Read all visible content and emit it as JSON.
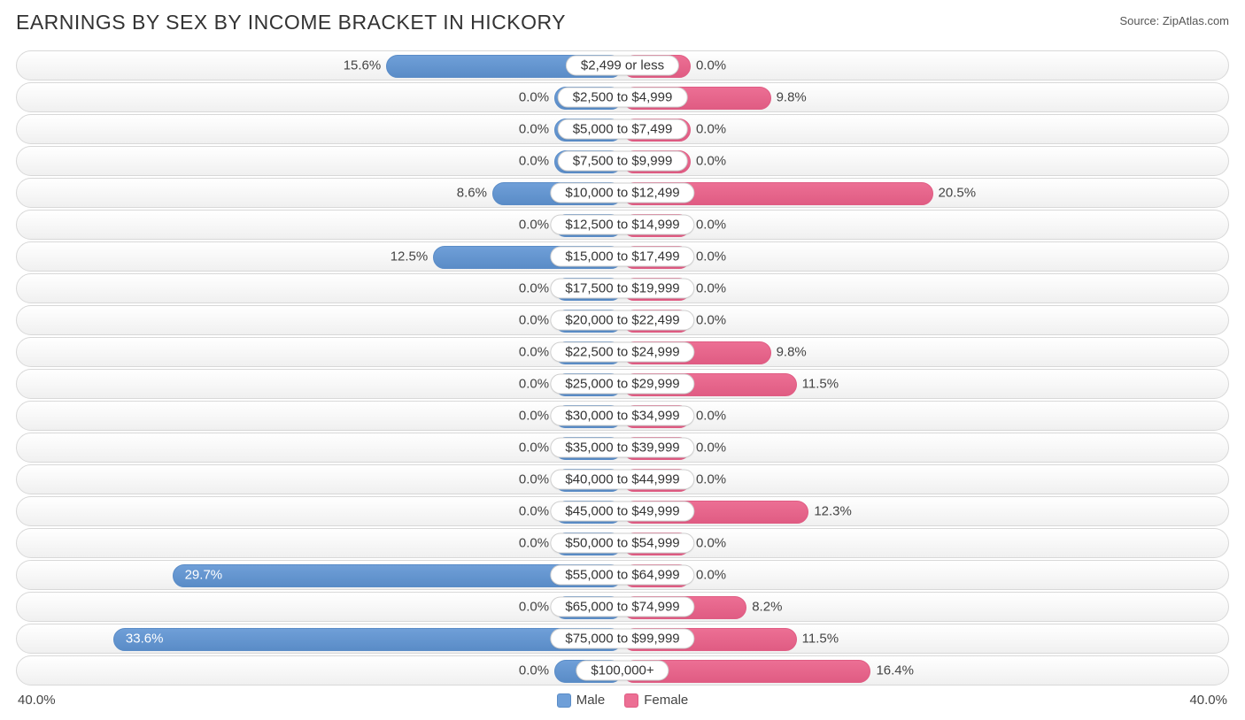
{
  "title": "EARNINGS BY SEX BY INCOME BRACKET IN HICKORY",
  "source": "Source: ZipAtlas.com",
  "chart": {
    "type": "diverging-bar",
    "axis_max_percent": 40.0,
    "axis_label_left": "40.0%",
    "axis_label_right": "40.0%",
    "min_bar_percent": 4.5,
    "colors": {
      "male_fill": "#6f9fd8",
      "male_border": "#5a8cc7",
      "female_fill": "#ec6f94",
      "female_border": "#e05c83",
      "track_border": "#d8d8d8",
      "text": "#444444",
      "pill_border": "#cfcfcf",
      "pill_bg": "#ffffff"
    },
    "legend": [
      {
        "name": "male",
        "label": "Male",
        "color": "#6f9fd8",
        "border": "#5a8cc7"
      },
      {
        "name": "female",
        "label": "Female",
        "color": "#ec6f94",
        "border": "#e05c83"
      }
    ],
    "rows": [
      {
        "label": "$2,499 or less",
        "male": 15.6,
        "female": 0.0
      },
      {
        "label": "$2,500 to $4,999",
        "male": 0.0,
        "female": 9.8
      },
      {
        "label": "$5,000 to $7,499",
        "male": 0.0,
        "female": 0.0
      },
      {
        "label": "$7,500 to $9,999",
        "male": 0.0,
        "female": 0.0
      },
      {
        "label": "$10,000 to $12,499",
        "male": 8.6,
        "female": 20.5
      },
      {
        "label": "$12,500 to $14,999",
        "male": 0.0,
        "female": 0.0
      },
      {
        "label": "$15,000 to $17,499",
        "male": 12.5,
        "female": 0.0
      },
      {
        "label": "$17,500 to $19,999",
        "male": 0.0,
        "female": 0.0
      },
      {
        "label": "$20,000 to $22,499",
        "male": 0.0,
        "female": 0.0
      },
      {
        "label": "$22,500 to $24,999",
        "male": 0.0,
        "female": 9.8
      },
      {
        "label": "$25,000 to $29,999",
        "male": 0.0,
        "female": 11.5
      },
      {
        "label": "$30,000 to $34,999",
        "male": 0.0,
        "female": 0.0
      },
      {
        "label": "$35,000 to $39,999",
        "male": 0.0,
        "female": 0.0
      },
      {
        "label": "$40,000 to $44,999",
        "male": 0.0,
        "female": 0.0
      },
      {
        "label": "$45,000 to $49,999",
        "male": 0.0,
        "female": 12.3
      },
      {
        "label": "$50,000 to $54,999",
        "male": 0.0,
        "female": 0.0
      },
      {
        "label": "$55,000 to $64,999",
        "male": 29.7,
        "female": 0.0
      },
      {
        "label": "$65,000 to $74,999",
        "male": 0.0,
        "female": 8.2
      },
      {
        "label": "$75,000 to $99,999",
        "male": 33.6,
        "female": 11.5
      },
      {
        "label": "$100,000+",
        "male": 0.0,
        "female": 16.4
      }
    ]
  }
}
